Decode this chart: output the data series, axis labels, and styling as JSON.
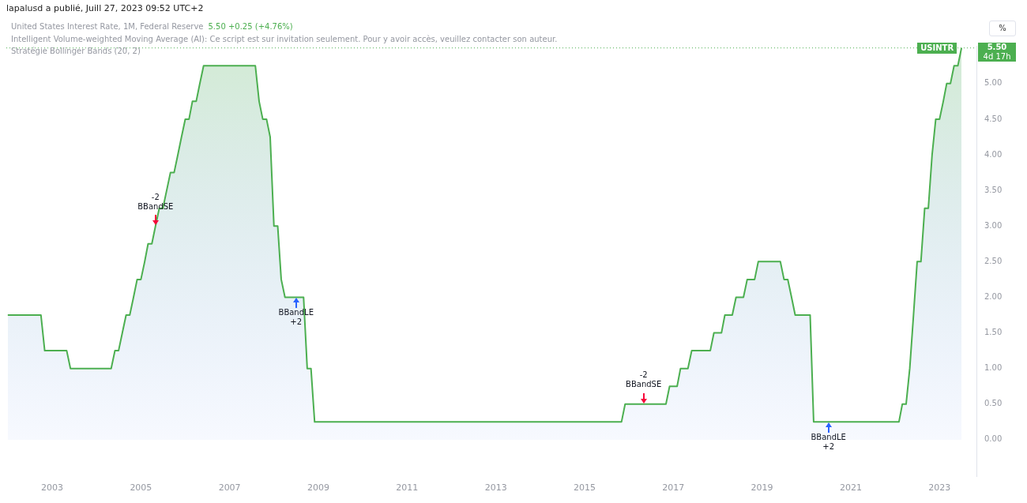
{
  "chart_data": {
    "type": "area",
    "title": "United States Interest Rate, 1M, Federal Reserve",
    "subtitle": "lapalusd a publié, Juill 27, 2023 09:52 UTC+2",
    "annotations": [
      "5.50 +0.25 (+4.76%)",
      "Intelligent Volume-weighted Moving Average (AI): Ce script est sur invitation seulement. Pour y avoir accès, veuillez contacter son auteur.",
      "Stratégie Bollinger Bands (20, 2)",
      "%",
      "5.50",
      "4d 17h",
      {
        "text": "-2\nBBandSE",
        "x": "2005-05",
        "y": 3.0
      },
      {
        "text": "BBandLE\n+2",
        "x": "2008-07",
        "y": 2.0
      },
      {
        "text": "-2\nBBandSE",
        "x": "2016-05",
        "y": 0.5
      },
      {
        "text": "BBandLE\n+2",
        "x": "2020-07",
        "y": 0.25
      }
    ],
    "x": [
      "2002-01",
      "2002-10",
      "2002-11",
      "2003-05",
      "2003-06",
      "2004-05",
      "2004-06",
      "2004-07",
      "2004-08",
      "2004-09",
      "2004-10",
      "2004-11",
      "2004-12",
      "2005-01",
      "2005-02",
      "2005-03",
      "2005-04",
      "2005-05",
      "2005-06",
      "2005-07",
      "2005-08",
      "2005-09",
      "2005-10",
      "2005-11",
      "2005-12",
      "2006-01",
      "2006-02",
      "2006-03",
      "2006-04",
      "2006-05",
      "2006-06",
      "2007-08",
      "2007-09",
      "2007-10",
      "2007-11",
      "2007-12",
      "2008-01",
      "2008-02",
      "2008-03",
      "2008-04",
      "2008-09",
      "2008-10",
      "2008-11",
      "2008-12",
      "2015-11",
      "2015-12",
      "2016-11",
      "2016-12",
      "2017-02",
      "2017-03",
      "2017-05",
      "2017-06",
      "2017-11",
      "2017-12",
      "2018-02",
      "2018-03",
      "2018-05",
      "2018-06",
      "2018-08",
      "2018-09",
      "2018-11",
      "2018-12",
      "2019-06",
      "2019-07",
      "2019-08",
      "2019-09",
      "2019-10",
      "2020-02",
      "2020-03",
      "2022-02",
      "2022-03",
      "2022-04",
      "2022-05",
      "2022-06",
      "2022-07",
      "2022-08",
      "2022-09",
      "2022-10",
      "2022-11",
      "2022-12",
      "2023-01",
      "2023-02",
      "2023-03",
      "2023-04",
      "2023-05",
      "2023-06",
      "2023-07"
    ],
    "series": [
      {
        "color": "#4caf50",
        "values": [
          1.75,
          1.75,
          1.25,
          1.25,
          1.0,
          1.0,
          1.25,
          1.25,
          1.5,
          1.75,
          1.75,
          2.0,
          2.25,
          2.25,
          2.5,
          2.75,
          2.75,
          3.0,
          3.25,
          3.25,
          3.5,
          3.75,
          3.75,
          4.0,
          4.25,
          4.5,
          4.5,
          4.75,
          4.75,
          5.0,
          5.25,
          5.25,
          4.75,
          4.5,
          4.5,
          4.25,
          3.0,
          3.0,
          2.25,
          2.0,
          2.0,
          1.0,
          1.0,
          0.25,
          0.25,
          0.5,
          0.5,
          0.75,
          0.75,
          1.0,
          1.0,
          1.25,
          1.25,
          1.5,
          1.5,
          1.75,
          1.75,
          2.0,
          2.0,
          2.25,
          2.25,
          2.5,
          2.5,
          2.25,
          2.25,
          2.0,
          1.75,
          1.75,
          0.25,
          0.25,
          0.5,
          0.5,
          1.0,
          1.75,
          2.5,
          2.5,
          3.25,
          3.25,
          4.0,
          4.5,
          4.5,
          4.75,
          5.0,
          5.0,
          5.25,
          5.25,
          5.5
        ]
      }
    ],
    "xlim": [
      "2001-12-20",
      "2023-11"
    ],
    "xticks": [
      "2003",
      "2005",
      "2007",
      "2009",
      "2011",
      "2013",
      "2015",
      "2017",
      "2019",
      "2021",
      "2023"
    ],
    "ylim": [
      -0.52,
      5.53
    ],
    "yticks": [
      {
        "value": 0,
        "label": "0.00"
      },
      {
        "value": 0.5,
        "label": "0.50"
      },
      {
        "value": 1,
        "label": "1.00"
      },
      {
        "value": 1.5,
        "label": "1.50"
      },
      {
        "value": 2,
        "label": "2.00"
      },
      {
        "value": 2.5,
        "label": "2.50"
      },
      {
        "value": 3,
        "label": "3.00"
      },
      {
        "value": 3.5,
        "label": "3.50"
      },
      {
        "value": 4,
        "label": "4.00"
      },
      {
        "value": 4.5,
        "label": "4.50"
      },
      {
        "value": 5,
        "label": "5.00"
      }
    ],
    "ref_lines": [
      {
        "axis": "y",
        "value": 5.5,
        "label": "USINTR",
        "color": "#4caf50",
        "line_style": "dotted"
      }
    ],
    "grid": false,
    "legend": false,
    "marker": "none",
    "line_style": "solid"
  }
}
